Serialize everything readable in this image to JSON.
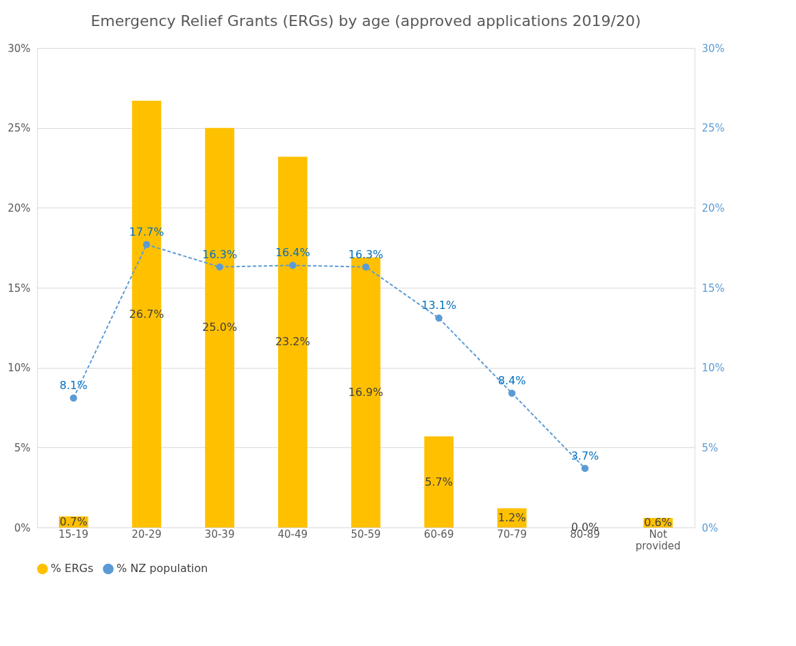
{
  "chart_data": {
    "type": "bar",
    "title": "Emergency Relief Grants (ERGs) by age (approved applications 2019/20)",
    "categories": [
      "15-19",
      "20-29",
      "30-39",
      "40-49",
      "50-59",
      "60-69",
      "70-79",
      "80-89",
      "Not provided"
    ],
    "series": [
      {
        "name": "% ERGs",
        "color": "#ffc000",
        "values": [
          0.7,
          26.7,
          25.0,
          23.2,
          16.9,
          5.7,
          1.2,
          0.0,
          0.6
        ],
        "value_labels": [
          "0.7%",
          "26.7%",
          "25.0%",
          "23.2%",
          "16.9%",
          "5.7%",
          "1.2%",
          "0.0%",
          "0.6%"
        ]
      },
      {
        "name": "% NZ population",
        "type": "line",
        "axis": "y2",
        "color": "#5b9bd5",
        "line_style": "dashed",
        "marker": "circle",
        "values": [
          8.1,
          17.7,
          16.3,
          16.4,
          16.3,
          13.1,
          8.4,
          3.7,
          null
        ],
        "value_labels": [
          "8.1%",
          "17.7%",
          "16.3%",
          "16.4%",
          "16.3%",
          "13.1%",
          "8.4%",
          "3.7%",
          null
        ]
      }
    ],
    "ylim": [
      0,
      30
    ],
    "yticks": [
      {
        "value": 0,
        "label": "0%"
      },
      {
        "value": 5,
        "label": "5%"
      },
      {
        "value": 10,
        "label": "10%"
      },
      {
        "value": 15,
        "label": "15%"
      },
      {
        "value": 20,
        "label": "20%"
      },
      {
        "value": 25,
        "label": "25%"
      },
      {
        "value": 30,
        "label": "30%"
      }
    ],
    "y2lim": [
      0,
      30
    ],
    "y2ticks": [
      {
        "value": 0,
        "label": "0%"
      },
      {
        "value": 5,
        "label": "5%"
      },
      {
        "value": 10,
        "label": "10%"
      },
      {
        "value": 15,
        "label": "15%"
      },
      {
        "value": 20,
        "label": "20%"
      },
      {
        "value": 25,
        "label": "25%"
      },
      {
        "value": 30,
        "label": "30%"
      }
    ],
    "grid": "y",
    "legend": "bottom"
  }
}
